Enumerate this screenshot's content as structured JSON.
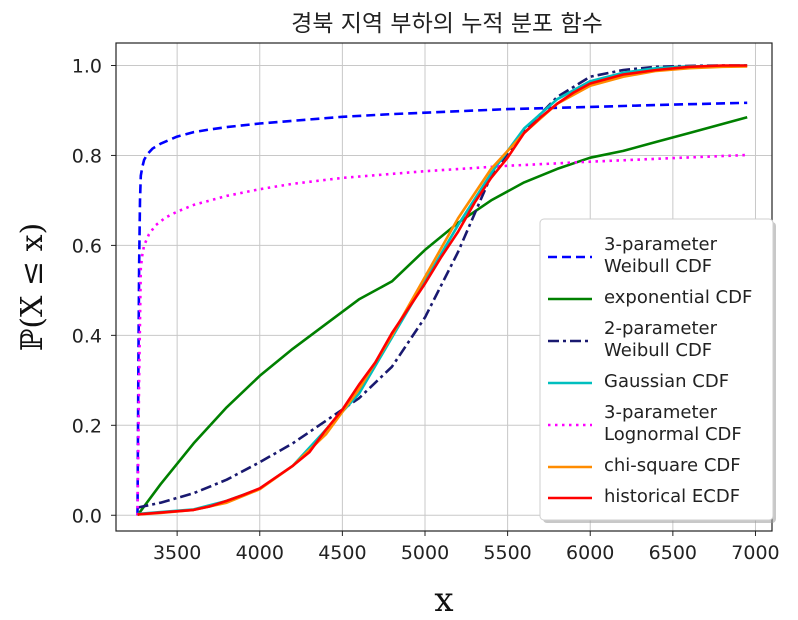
{
  "chart_data": {
    "type": "line",
    "title": "경북 지역 부하의 누적 분포 함수",
    "xlabel": "x",
    "ylabel": "ℙ(X ≤ x)",
    "xlim": [
      3130,
      7100
    ],
    "ylim": [
      -0.035,
      1.05
    ],
    "x_ticks": [
      "3500",
      "4000",
      "4500",
      "5000",
      "5500",
      "6000",
      "6500",
      "7000"
    ],
    "x_tick_values": [
      3500,
      4000,
      4500,
      5000,
      5500,
      6000,
      6500,
      7000
    ],
    "y_ticks": [
      "0.0",
      "0.2",
      "0.4",
      "0.6",
      "0.8",
      "1.0"
    ],
    "y_tick_values": [
      0.0,
      0.2,
      0.4,
      0.6,
      0.8,
      1.0
    ],
    "grid": true,
    "legend_position": "lower-right",
    "series": [
      {
        "name": "3-parameter Weibull CDF",
        "color": "#0000ff",
        "dash": "dashed",
        "width": 2.6,
        "x": [
          3260,
          3265,
          3270,
          3275,
          3280,
          3290,
          3300,
          3320,
          3350,
          3400,
          3500,
          3600,
          3700,
          3800,
          4000,
          4200,
          4500,
          4800,
          5000,
          5500,
          6000,
          6500,
          6950
        ],
        "y": [
          0.0,
          0.3,
          0.55,
          0.7,
          0.755,
          0.775,
          0.79,
          0.803,
          0.815,
          0.826,
          0.842,
          0.852,
          0.858,
          0.863,
          0.871,
          0.877,
          0.886,
          0.892,
          0.895,
          0.903,
          0.908,
          0.913,
          0.917
        ]
      },
      {
        "name": "exponential CDF",
        "color": "#008000",
        "dash": "solid",
        "width": 2.6,
        "x": [
          3260,
          3400,
          3600,
          3800,
          4000,
          4200,
          4400,
          4600,
          4800,
          5000,
          5200,
          5400,
          5600,
          5800,
          6000,
          6200,
          6400,
          6600,
          6800,
          6950
        ],
        "y": [
          0.0,
          0.069,
          0.16,
          0.24,
          0.31,
          0.37,
          0.425,
          0.48,
          0.52,
          0.59,
          0.65,
          0.7,
          0.74,
          0.77,
          0.795,
          0.81,
          0.83,
          0.85,
          0.87,
          0.885
        ]
      },
      {
        "name": "2-parameter Weibull CDF",
        "color": "#191970",
        "dash": "dashdot",
        "width": 2.6,
        "x": [
          3260,
          3400,
          3600,
          3800,
          4000,
          4200,
          4400,
          4600,
          4800,
          5000,
          5200,
          5400,
          5600,
          5800,
          6000,
          6200,
          6400,
          6600,
          6800,
          6950
        ],
        "y": [
          0.017,
          0.028,
          0.049,
          0.079,
          0.118,
          0.16,
          0.21,
          0.26,
          0.33,
          0.44,
          0.585,
          0.755,
          0.855,
          0.93,
          0.975,
          0.99,
          0.997,
          0.999,
          1.0,
          1.0
        ]
      },
      {
        "name": "Gaussian CDF",
        "color": "#00bfbf",
        "dash": "solid",
        "width": 2.6,
        "x": [
          3260,
          3400,
          3600,
          3800,
          4000,
          4200,
          4400,
          4600,
          4800,
          5000,
          5200,
          5400,
          5600,
          5800,
          6000,
          6200,
          6400,
          6600,
          6800,
          6950
        ],
        "y": [
          0.003,
          0.007,
          0.013,
          0.032,
          0.059,
          0.11,
          0.19,
          0.27,
          0.395,
          0.52,
          0.645,
          0.76,
          0.86,
          0.925,
          0.965,
          0.984,
          0.994,
          0.998,
          0.999,
          1.0
        ]
      },
      {
        "name": "3-parameter Lognormal CDF",
        "color": "#ff00ff",
        "dash": "dotted",
        "width": 2.6,
        "x": [
          3260,
          3270,
          3280,
          3290,
          3300,
          3330,
          3370,
          3430,
          3500,
          3600,
          3700,
          3800,
          4000,
          4200,
          4500,
          5000,
          5500,
          6000,
          6500,
          6950
        ],
        "y": [
          0.0,
          0.3,
          0.55,
          0.58,
          0.6,
          0.625,
          0.645,
          0.662,
          0.675,
          0.69,
          0.7,
          0.71,
          0.725,
          0.737,
          0.75,
          0.765,
          0.777,
          0.786,
          0.794,
          0.801
        ]
      },
      {
        "name": "chi-square CDF",
        "color": "#ff8c00",
        "dash": "solid",
        "width": 2.6,
        "x": [
          3260,
          3400,
          3600,
          3800,
          4000,
          4200,
          4400,
          4600,
          4800,
          5000,
          5200,
          5400,
          5600,
          5800,
          6000,
          6200,
          6400,
          6600,
          6800,
          6950
        ],
        "y": [
          0.002,
          0.005,
          0.012,
          0.028,
          0.058,
          0.11,
          0.18,
          0.28,
          0.4,
          0.53,
          0.66,
          0.77,
          0.85,
          0.915,
          0.955,
          0.975,
          0.988,
          0.994,
          0.997,
          0.998
        ]
      },
      {
        "name": "historical ECDF",
        "color": "#ff0000",
        "dash": "solid",
        "width": 2.6,
        "x": [
          3260,
          3400,
          3600,
          3700,
          3800,
          3900,
          4000,
          4200,
          4300,
          4400,
          4500,
          4600,
          4700,
          4800,
          4900,
          5000,
          5100,
          5200,
          5300,
          5400,
          5500,
          5600,
          5700,
          5800,
          5900,
          6000,
          6200,
          6400,
          6600,
          6800,
          6950
        ],
        "y": [
          0.002,
          0.006,
          0.012,
          0.02,
          0.032,
          0.045,
          0.06,
          0.11,
          0.14,
          0.19,
          0.235,
          0.29,
          0.34,
          0.405,
          0.46,
          0.515,
          0.575,
          0.63,
          0.695,
          0.75,
          0.795,
          0.85,
          0.885,
          0.915,
          0.94,
          0.96,
          0.98,
          0.99,
          0.997,
          1.0,
          1.0
        ]
      }
    ]
  }
}
